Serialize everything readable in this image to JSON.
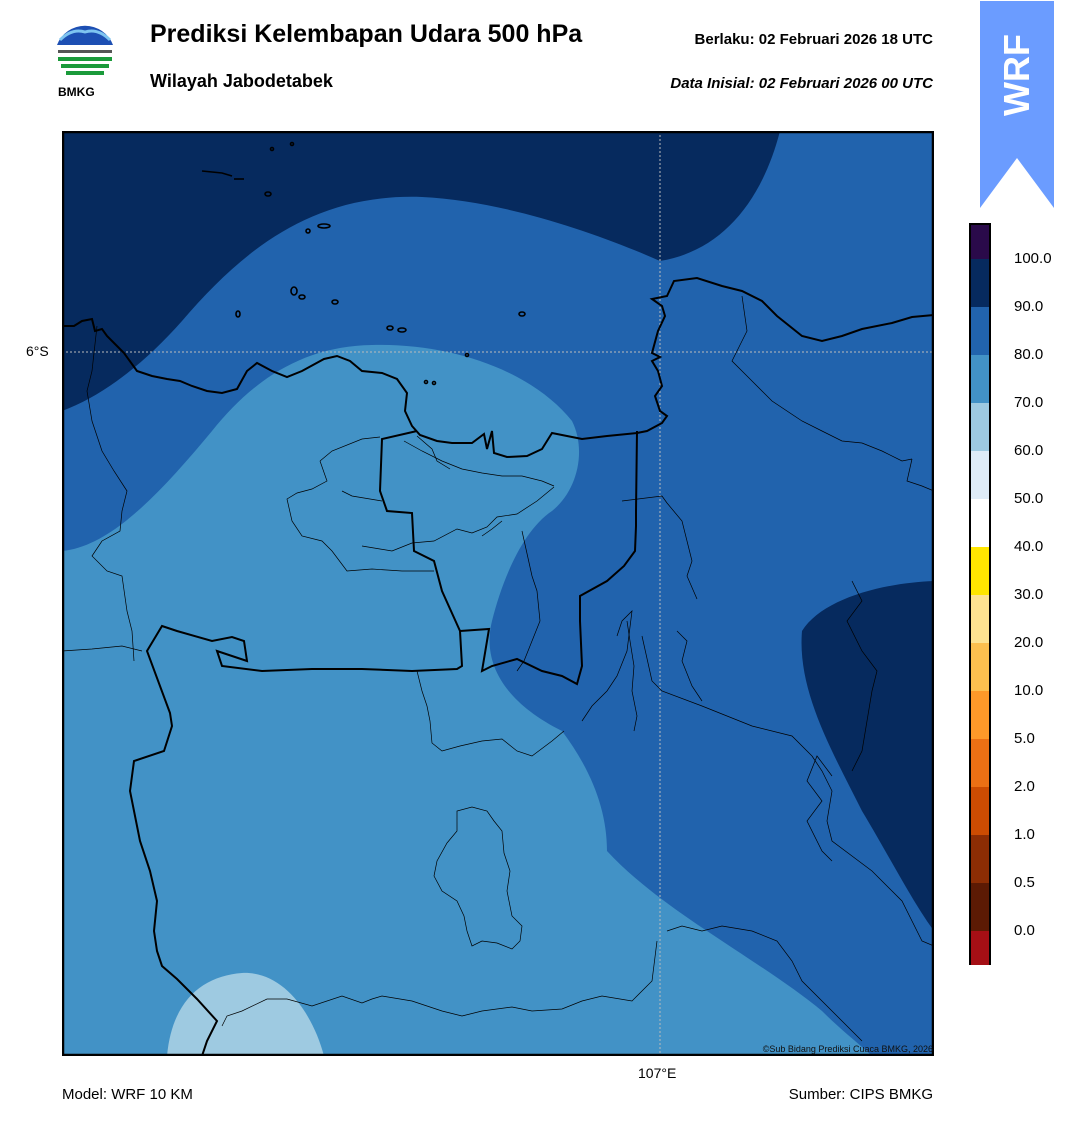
{
  "header": {
    "title": "Prediksi Kelembapan Udara 500 hPa",
    "subtitle": "Wilayah Jabodetabek",
    "valid_text": "Berlaku:  02 Februari 2026 18 UTC",
    "init_text": "Data Inisial:  02 Februari 2026 00 UTC",
    "logo_text": "BMKG"
  },
  "badge": {
    "text": "WRF",
    "color": "#6b9cff"
  },
  "map": {
    "lat_label": "6°S",
    "lon_label": "107°E",
    "credit": "©Sub Bidang Prediksi Cuaca BMKG, 2026"
  },
  "colorbar": {
    "ticks": [
      "100.0",
      "90.0",
      "80.0",
      "70.0",
      "60.0",
      "50.0",
      "40.0",
      "30.0",
      "20.0",
      "10.0",
      "5.0",
      "2.0",
      "1.0",
      "0.5",
      "0.0"
    ],
    "colors": [
      "#2a0a4a",
      "#062a5e",
      "#2163ad",
      "#4292c6",
      "#9ecae1",
      "#deebf7",
      "#ffffff",
      "#ffe600",
      "#fee391",
      "#fdc04f",
      "#fe9929",
      "#ec7014",
      "#cc4c02",
      "#8c2d04",
      "#5c1a04",
      "#a50f15",
      "#ef3b2c"
    ]
  },
  "footer": {
    "model": "Model: WRF 10 KM",
    "source": "Sumber: CIPS BMKG"
  }
}
